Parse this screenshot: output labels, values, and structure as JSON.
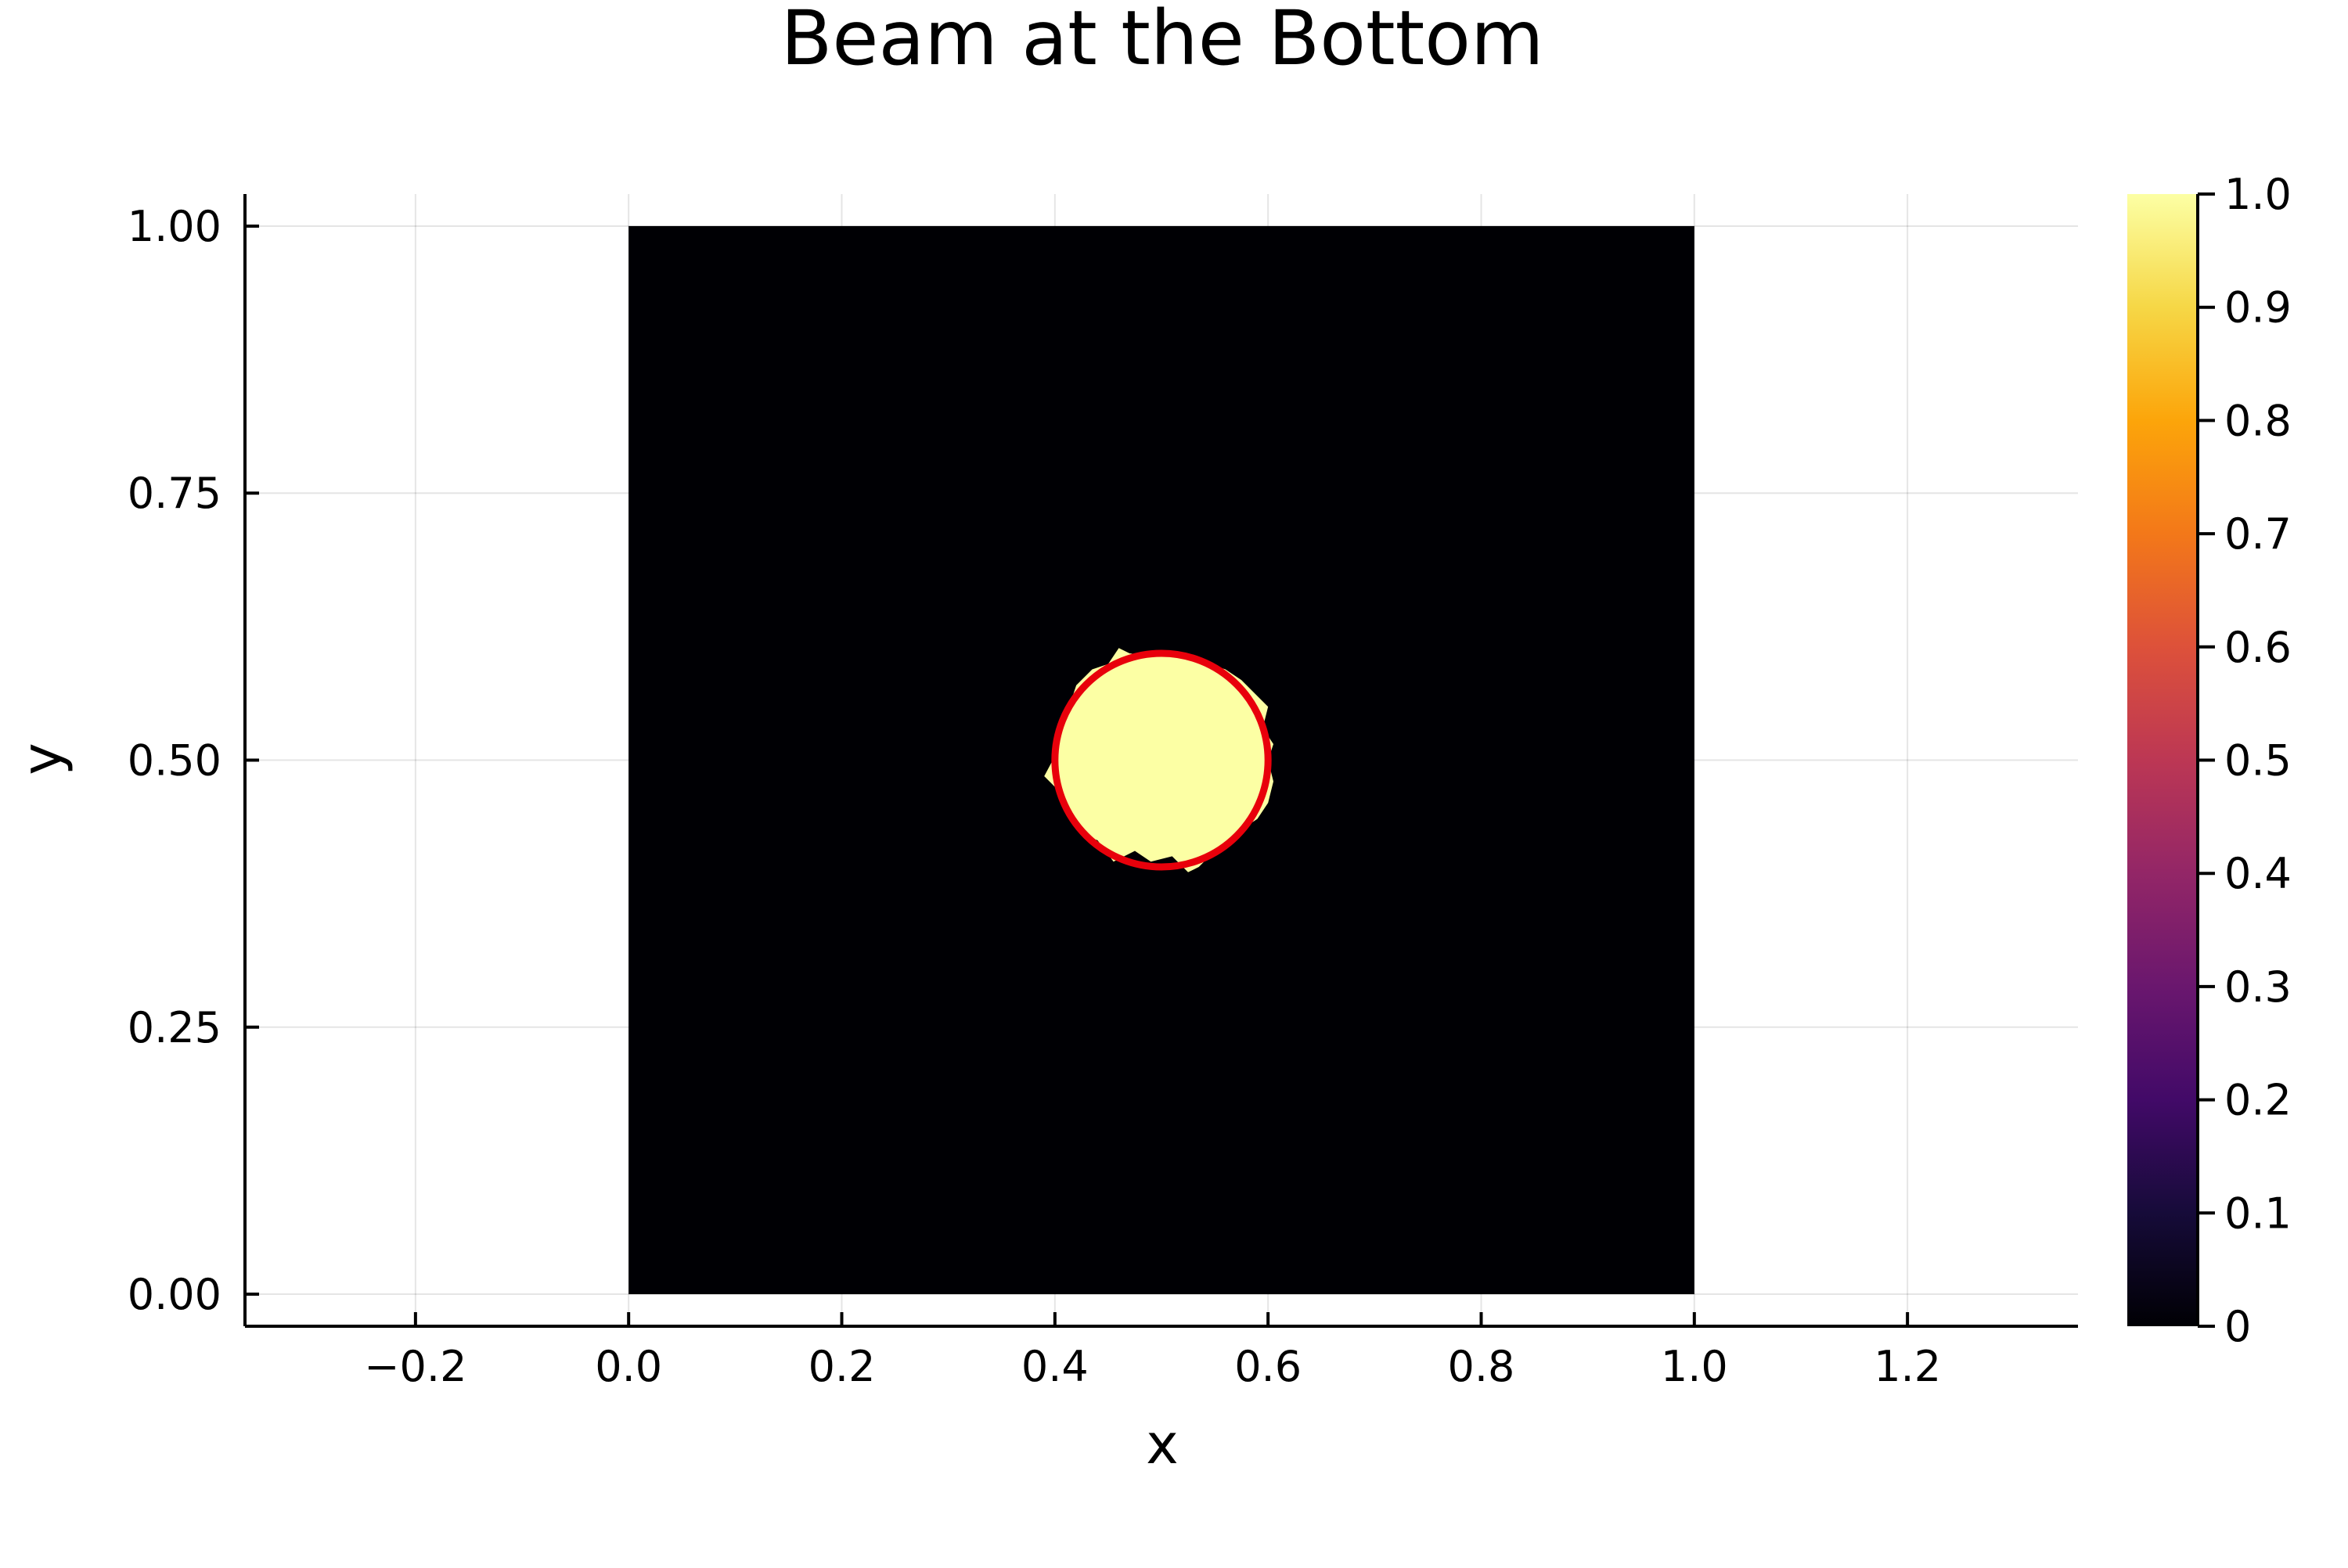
{
  "chart_data": {
    "type": "heatmap",
    "title": "Beam at the Bottom",
    "xlabel": "x",
    "ylabel": "y",
    "xlim": [
      -0.36,
      1.36
    ],
    "ylim": [
      -0.03,
      1.03
    ],
    "x_ticks": [
      -0.2,
      0.0,
      0.2,
      0.4,
      0.6,
      0.8,
      1.0,
      1.2
    ],
    "x_tick_labels": [
      "−0.2",
      "0.0",
      "0.2",
      "0.4",
      "0.6",
      "0.8",
      "1.0",
      "1.2"
    ],
    "y_ticks": [
      0.0,
      0.25,
      0.5,
      0.75,
      1.0
    ],
    "y_tick_labels": [
      "0.00",
      "0.25",
      "0.50",
      "0.75",
      "1.00"
    ],
    "grid": true,
    "heatmap_extent": {
      "x": [
        0.0,
        1.0
      ],
      "y": [
        0.0,
        1.0
      ]
    },
    "background_value": 0,
    "beam": {
      "value": 1.0,
      "center": [
        0.5,
        0.5
      ],
      "approx_radius": 0.095,
      "boundary_polygon": [
        [
          0.39,
          0.485
        ],
        [
          0.405,
          0.47
        ],
        [
          0.41,
          0.45
        ],
        [
          0.425,
          0.43
        ],
        [
          0.44,
          0.425
        ],
        [
          0.455,
          0.405
        ],
        [
          0.475,
          0.415
        ],
        [
          0.49,
          0.405
        ],
        [
          0.51,
          0.41
        ],
        [
          0.525,
          0.395
        ],
        [
          0.535,
          0.4
        ],
        [
          0.545,
          0.41
        ],
        [
          0.56,
          0.42
        ],
        [
          0.575,
          0.435
        ],
        [
          0.59,
          0.445
        ],
        [
          0.6,
          0.46
        ],
        [
          0.605,
          0.48
        ],
        [
          0.6,
          0.5
        ],
        [
          0.605,
          0.515
        ],
        [
          0.595,
          0.53
        ],
        [
          0.6,
          0.55
        ],
        [
          0.585,
          0.565
        ],
        [
          0.575,
          0.575
        ],
        [
          0.56,
          0.585
        ],
        [
          0.545,
          0.59
        ],
        [
          0.53,
          0.595
        ],
        [
          0.515,
          0.6
        ],
        [
          0.5,
          0.6
        ],
        [
          0.485,
          0.598
        ],
        [
          0.47,
          0.6
        ],
        [
          0.46,
          0.605
        ],
        [
          0.45,
          0.59
        ],
        [
          0.435,
          0.585
        ],
        [
          0.42,
          0.57
        ],
        [
          0.415,
          0.555
        ],
        [
          0.405,
          0.535
        ],
        [
          0.402,
          0.515
        ],
        [
          0.398,
          0.5
        ]
      ]
    },
    "overlay_circle": {
      "center": [
        0.5,
        0.5
      ],
      "radius": 0.1,
      "color": "#e8000b"
    },
    "colorbar": {
      "range": [
        0,
        1
      ],
      "ticks": [
        0,
        0.1,
        0.2,
        0.3,
        0.4,
        0.5,
        0.6,
        0.7,
        0.8,
        0.9,
        1.0
      ],
      "tick_labels": [
        "0",
        "0.1",
        "0.2",
        "0.3",
        "0.4",
        "0.5",
        "0.6",
        "0.7",
        "0.8",
        "0.9",
        "1.0"
      ],
      "colormap": "inferno",
      "stops": [
        [
          0.0,
          "#000004"
        ],
        [
          0.1,
          "#160b39"
        ],
        [
          0.2,
          "#420a68"
        ],
        [
          0.3,
          "#6a176e"
        ],
        [
          0.4,
          "#932667"
        ],
        [
          0.5,
          "#bc3754"
        ],
        [
          0.6,
          "#dd513a"
        ],
        [
          0.7,
          "#f37819"
        ],
        [
          0.8,
          "#fca50a"
        ],
        [
          0.9,
          "#f6d746"
        ],
        [
          1.0,
          "#fcffa4"
        ]
      ]
    },
    "colors": {
      "background_cell": "#000004",
      "beam_cell": "#fcffa4",
      "axis": "#000000"
    }
  }
}
